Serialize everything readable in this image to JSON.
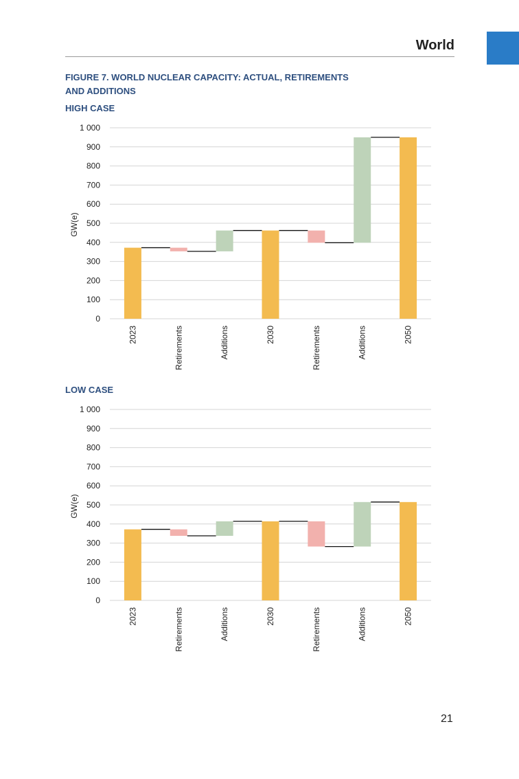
{
  "header": {
    "section": "World"
  },
  "figure": {
    "title_line1": "FIGURE 7. WORLD NUCLEAR CAPACITY: ACTUAL, RETIREMENTS",
    "title_line2": "AND ADDITIONS"
  },
  "page": {
    "number": "21"
  },
  "colors": {
    "tab": "#2a7cc7",
    "actual": "#f3bb50",
    "retirements": "#f2b1ad",
    "additions": "#bed3b9"
  },
  "chart_data": [
    {
      "title": "HIGH CASE",
      "type": "bar",
      "subtype": "waterfall",
      "ylabel": "GW(e)",
      "ylim": [
        0,
        1000
      ],
      "yticks": [
        0,
        100,
        200,
        300,
        400,
        500,
        600,
        700,
        800,
        900,
        1000
      ],
      "ytick_labels": [
        "0",
        "100",
        "200",
        "300",
        "400",
        "500",
        "600",
        "700",
        "800",
        "900",
        "1 000"
      ],
      "grid": true,
      "categories": [
        "2023",
        "Retirements",
        "Additions",
        "2030",
        "Retirements",
        "Additions",
        "2050"
      ],
      "bars": [
        {
          "kind": "actual",
          "from": 0,
          "to": 372
        },
        {
          "kind": "retirements",
          "from": 372,
          "to": 353
        },
        {
          "kind": "additions",
          "from": 353,
          "to": 462
        },
        {
          "kind": "actual",
          "from": 0,
          "to": 462
        },
        {
          "kind": "retirements",
          "from": 462,
          "to": 398
        },
        {
          "kind": "additions",
          "from": 398,
          "to": 950
        },
        {
          "kind": "actual",
          "from": 0,
          "to": 950
        }
      ]
    },
    {
      "title": "LOW CASE",
      "type": "bar",
      "subtype": "waterfall",
      "ylabel": "GW(e)",
      "ylim": [
        0,
        1000
      ],
      "yticks": [
        0,
        100,
        200,
        300,
        400,
        500,
        600,
        700,
        800,
        900,
        1000
      ],
      "ytick_labels": [
        "0",
        "100",
        "200",
        "300",
        "400",
        "500",
        "600",
        "700",
        "800",
        "900",
        "1 000"
      ],
      "grid": true,
      "categories": [
        "2023",
        "Retirements",
        "Additions",
        "2030",
        "Retirements",
        "Additions",
        "2050"
      ],
      "bars": [
        {
          "kind": "actual",
          "from": 0,
          "to": 372
        },
        {
          "kind": "retirements",
          "from": 372,
          "to": 338
        },
        {
          "kind": "additions",
          "from": 338,
          "to": 414
        },
        {
          "kind": "actual",
          "from": 0,
          "to": 414
        },
        {
          "kind": "retirements",
          "from": 414,
          "to": 282
        },
        {
          "kind": "additions",
          "from": 282,
          "to": 515
        },
        {
          "kind": "actual",
          "from": 0,
          "to": 515
        }
      ]
    }
  ]
}
